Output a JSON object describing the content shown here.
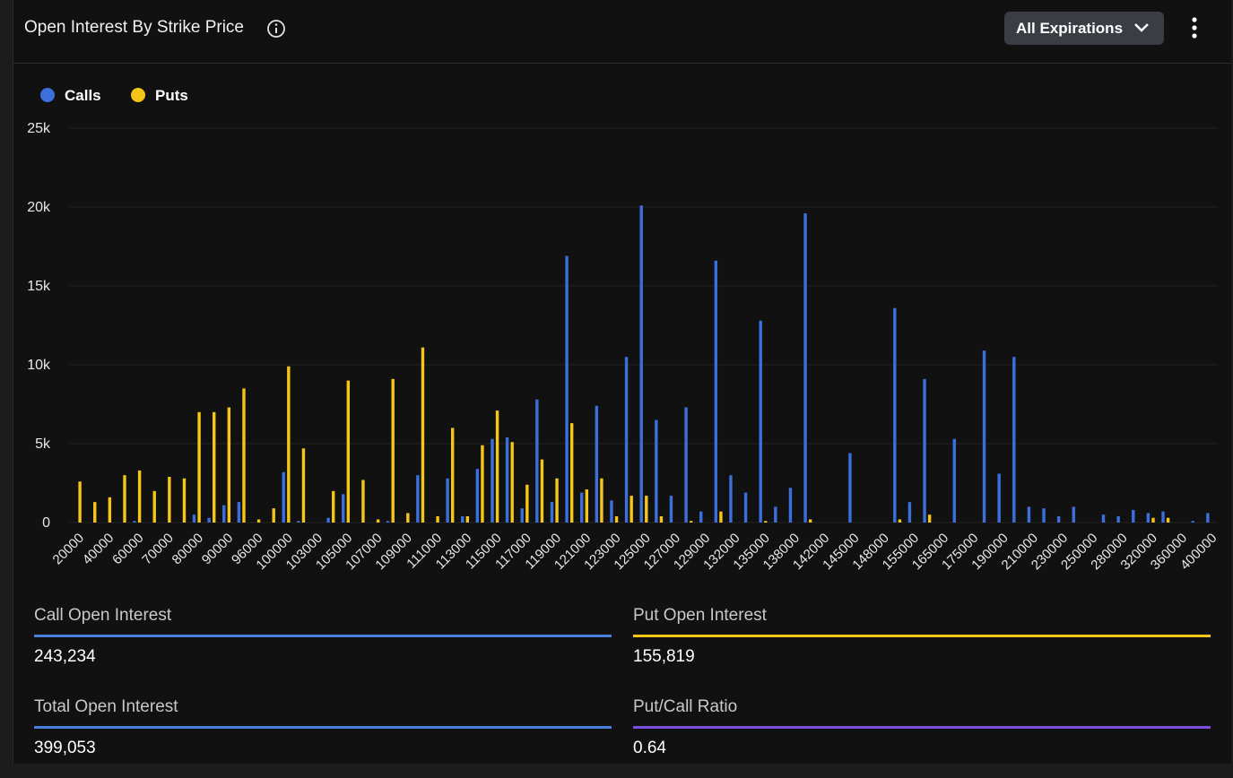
{
  "header": {
    "title": "Open Interest By Strike Price",
    "button": "All Expirations"
  },
  "chart_data": {
    "type": "bar",
    "categories": [
      "20000",
      null,
      "40000",
      null,
      "60000",
      null,
      "70000",
      null,
      "80000",
      null,
      "90000",
      null,
      "96000",
      null,
      "100000",
      null,
      "103000",
      null,
      "105000",
      null,
      "107000",
      null,
      "109000",
      null,
      "111000",
      null,
      "113000",
      null,
      "115000",
      null,
      "117000",
      null,
      "119000",
      null,
      "121000",
      null,
      "123000",
      null,
      "125000",
      null,
      "127000",
      null,
      "129000",
      null,
      "132000",
      null,
      "135000",
      null,
      "138000",
      null,
      "142000",
      null,
      "145000",
      null,
      "148000",
      null,
      "155000",
      null,
      "165000",
      null,
      "175000",
      null,
      "190000",
      null,
      "210000",
      null,
      "230000",
      null,
      "250000",
      null,
      "280000",
      null,
      "320000",
      null,
      "360000",
      null,
      "400000"
    ],
    "series": [
      {
        "name": "Calls",
        "color": "#3b6fdc",
        "values": [
          0,
          0,
          0,
          0,
          100,
          0,
          0,
          0,
          500,
          300,
          1100,
          1300,
          0,
          0,
          3200,
          100,
          0,
          300,
          1800,
          0,
          0,
          100,
          0,
          3000,
          0,
          2800,
          400,
          3400,
          5300,
          5400,
          900,
          7800,
          1300,
          16900,
          1900,
          7400,
          1400,
          10500,
          20100,
          6500,
          1700,
          7300,
          700,
          16600,
          3000,
          1900,
          12800,
          1000,
          2200,
          19600,
          0,
          0,
          4400,
          0,
          0,
          13600,
          1300,
          9100,
          0,
          5300,
          0,
          10900,
          3100,
          10500,
          1000,
          900,
          400,
          1000,
          0,
          500,
          400,
          800,
          600,
          700,
          0,
          100,
          600
        ]
      },
      {
        "name": "Puts",
        "color": "#f5c518",
        "values": [
          2600,
          1300,
          1600,
          3000,
          3300,
          2000,
          2900,
          2800,
          7000,
          7000,
          7300,
          8500,
          200,
          900,
          9900,
          4700,
          0,
          2000,
          9000,
          2700,
          200,
          9100,
          600,
          11100,
          400,
          6000,
          400,
          4900,
          7100,
          5100,
          2400,
          4000,
          2800,
          6300,
          2100,
          2800,
          400,
          1700,
          1700,
          400,
          0,
          100,
          0,
          700,
          0,
          0,
          100,
          0,
          0,
          200,
          0,
          0,
          0,
          0,
          0,
          200,
          0,
          500,
          0,
          0,
          0,
          0,
          0,
          0,
          0,
          0,
          0,
          0,
          0,
          0,
          0,
          0,
          300,
          300,
          0,
          0,
          0
        ]
      }
    ],
    "ylim": [
      0,
      25000
    ],
    "yticks": [
      0,
      {
        "value": 5000,
        "label": "5k"
      },
      {
        "value": 10000,
        "label": "10k"
      },
      {
        "value": 15000,
        "label": "15k"
      },
      {
        "value": 20000,
        "label": "20k"
      },
      {
        "value": 25000,
        "label": "25k"
      }
    ],
    "grid": true
  },
  "stats": [
    {
      "label": "Call Open Interest",
      "value": "243,234",
      "color": "#4a7fe0"
    },
    {
      "label": "Put Open Interest",
      "value": "155,819",
      "color": "#f5c518"
    },
    {
      "label": "Total Open Interest",
      "value": "399,053",
      "color": "#4a7fe0"
    },
    {
      "label": "Put/Call Ratio",
      "value": "0.64",
      "color": "#7b4ee0"
    }
  ]
}
